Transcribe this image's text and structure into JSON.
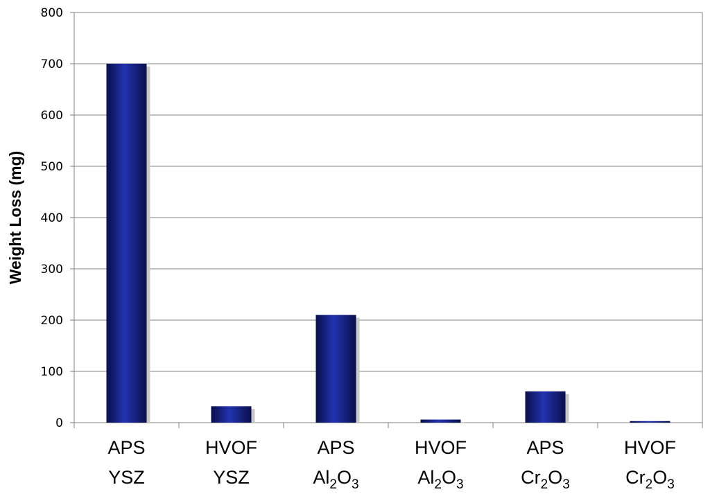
{
  "chart_data": {
    "type": "bar",
    "categories": [
      {
        "line1": "APS",
        "line2": "YSZ"
      },
      {
        "line1": "HVOF",
        "line2": "YSZ"
      },
      {
        "line1": "APS",
        "line2": "Al2O3",
        "formula": [
          "Al",
          "2",
          "O",
          "3"
        ]
      },
      {
        "line1": "HVOF",
        "line2": "Al2O3",
        "formula": [
          "Al",
          "2",
          "O",
          "3"
        ]
      },
      {
        "line1": "APS",
        "line2": "Cr2O3",
        "formula": [
          "Cr",
          "2",
          "O",
          "3"
        ]
      },
      {
        "line1": "HVOF",
        "line2": "Cr2O3",
        "formula": [
          "Cr",
          "2",
          "O",
          "3"
        ]
      }
    ],
    "values": [
      700,
      32,
      210,
      6,
      61,
      3
    ],
    "ylabel": "Weight Loss (mg)",
    "xlabel": "",
    "ylim": [
      0,
      800
    ],
    "yticks": [
      0,
      100,
      200,
      300,
      400,
      500,
      600,
      700,
      800
    ],
    "grid": true,
    "legend": "none",
    "colors": {
      "bar_dark": "#0a0f4a",
      "bar_mid": "#1a2a9a",
      "bar_light": "#3040c0",
      "shadow": "#c8c8c8",
      "grid": "#808080",
      "axis": "#808080"
    }
  }
}
